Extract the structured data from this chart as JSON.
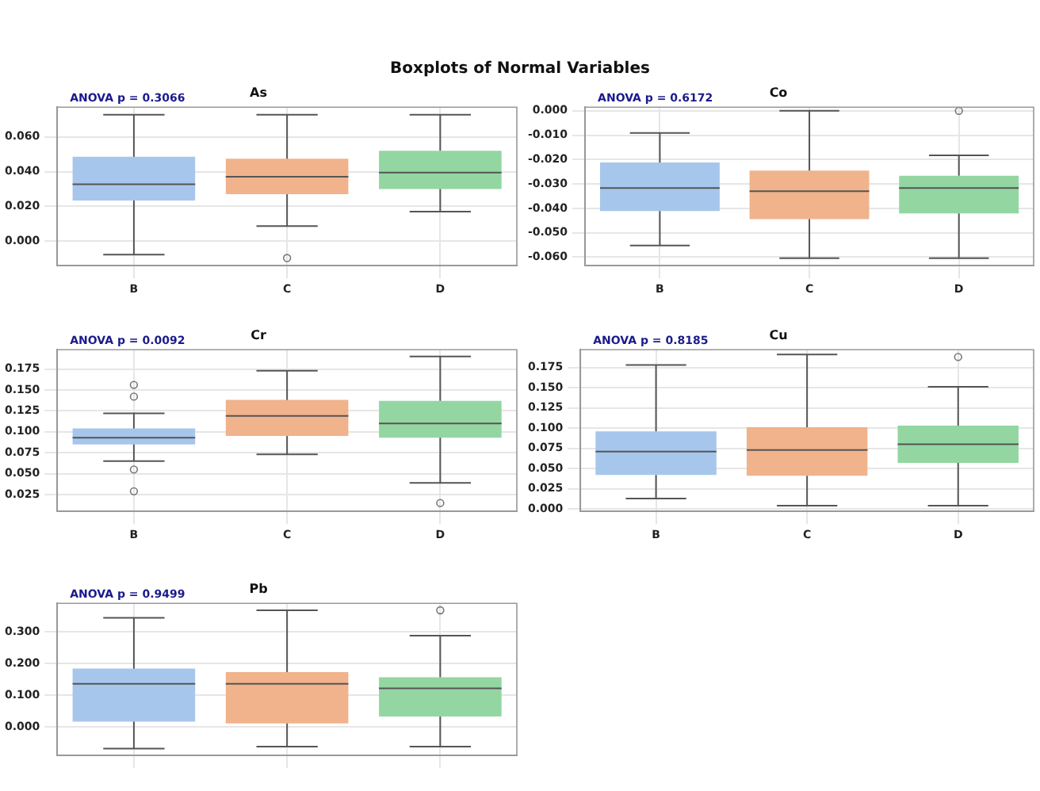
{
  "chart_data": [
    {
      "type": "other",
      "title": "Boxplots of Normal Variables"
    },
    {
      "type": "box",
      "title": "As",
      "annotations": [
        "ANOVA p = 0.3066"
      ],
      "categories": [
        "B",
        "C",
        "D"
      ],
      "colors": [
        "#a7c6ec",
        "#f0b38c",
        "#93d6a2"
      ],
      "ylim": [
        -0.014,
        0.077
      ],
      "yticks": [
        {
          "value": 0,
          "label": "0.000"
        },
        {
          "value": 0.02,
          "label": "0.020"
        },
        {
          "value": 0.04,
          "label": "0.040"
        },
        {
          "value": 0.06,
          "label": "0.060"
        }
      ],
      "grid": true,
      "boxes": [
        {
          "low": -0.0076,
          "q1": 0.0234,
          "median": 0.0327,
          "q3": 0.0485,
          "high": 0.0727
        },
        {
          "low": 0.0087,
          "q1": 0.027,
          "median": 0.037,
          "q3": 0.0474,
          "high": 0.0727,
          "outliers": [
            -0.0096
          ]
        },
        {
          "low": 0.017,
          "q1": 0.03,
          "median": 0.0394,
          "q3": 0.052,
          "high": 0.0727
        }
      ]
    },
    {
      "type": "box",
      "title": "Co",
      "annotations": [
        "ANOVA p = 0.6172"
      ],
      "categories": [
        "B",
        "C",
        "D"
      ],
      "colors": [
        "#a7c6ec",
        "#f0b38c",
        "#93d6a2"
      ],
      "ylim": [
        -0.0635,
        0.0015
      ],
      "yticks": [
        {
          "value": -0.06,
          "label": "-0.060"
        },
        {
          "value": -0.05,
          "label": "-0.050"
        },
        {
          "value": -0.04,
          "label": "-0.040"
        },
        {
          "value": -0.03,
          "label": "-0.030"
        },
        {
          "value": -0.02,
          "label": "-0.020"
        },
        {
          "value": -0.01,
          "label": "-0.010"
        },
        {
          "value": 0,
          "label": "0.000"
        }
      ],
      "grid": true,
      "boxes": [
        {
          "low": -0.0552,
          "q1": -0.0411,
          "median": -0.0317,
          "q3": -0.0212,
          "high": -0.0091
        },
        {
          "low": -0.0604,
          "q1": -0.0444,
          "median": -0.033,
          "q3": -0.0245,
          "high": 0.0
        },
        {
          "low": -0.0604,
          "q1": -0.0421,
          "median": -0.0317,
          "q3": -0.0266,
          "high": -0.0183,
          "outliers": [
            0.0
          ]
        }
      ]
    },
    {
      "type": "box",
      "title": "Cr",
      "annotations": [
        "ANOVA p = 0.0092"
      ],
      "categories": [
        "B",
        "C",
        "D"
      ],
      "colors": [
        "#a7c6ec",
        "#f0b38c",
        "#93d6a2"
      ],
      "ylim": [
        0.005,
        0.198
      ],
      "yticks": [
        {
          "value": 0.025,
          "label": "0.025"
        },
        {
          "value": 0.05,
          "label": "0.050"
        },
        {
          "value": 0.075,
          "label": "0.075"
        },
        {
          "value": 0.1,
          "label": "0.100"
        },
        {
          "value": 0.125,
          "label": "0.125"
        },
        {
          "value": 0.15,
          "label": "0.150"
        },
        {
          "value": 0.175,
          "label": "0.175"
        }
      ],
      "grid": true,
      "boxes": [
        {
          "low": 0.065,
          "q1": 0.085,
          "median": 0.093,
          "q3": 0.104,
          "high": 0.122,
          "outliers": [
            0.156,
            0.142,
            0.055,
            0.029
          ]
        },
        {
          "low": 0.073,
          "q1": 0.095,
          "median": 0.119,
          "q3": 0.138,
          "high": 0.173
        },
        {
          "low": 0.039,
          "q1": 0.093,
          "median": 0.11,
          "q3": 0.137,
          "high": 0.19,
          "outliers": [
            0.015
          ]
        }
      ]
    },
    {
      "type": "box",
      "title": "Cu",
      "annotations": [
        "ANOVA p = 0.8185"
      ],
      "categories": [
        "B",
        "C",
        "D"
      ],
      "colors": [
        "#a7c6ec",
        "#f0b38c",
        "#93d6a2"
      ],
      "ylim": [
        -0.003,
        0.197
      ],
      "yticks": [
        {
          "value": 0,
          "label": "0.000"
        },
        {
          "value": 0.025,
          "label": "0.025"
        },
        {
          "value": 0.05,
          "label": "0.050"
        },
        {
          "value": 0.075,
          "label": "0.075"
        },
        {
          "value": 0.1,
          "label": "0.100"
        },
        {
          "value": 0.125,
          "label": "0.125"
        },
        {
          "value": 0.15,
          "label": "0.150"
        },
        {
          "value": 0.175,
          "label": "0.175"
        }
      ],
      "grid": true,
      "boxes": [
        {
          "low": 0.013,
          "q1": 0.042,
          "median": 0.071,
          "q3": 0.096,
          "high": 0.178
        },
        {
          "low": 0.004,
          "q1": 0.041,
          "median": 0.073,
          "q3": 0.101,
          "high": 0.191
        },
        {
          "low": 0.004,
          "q1": 0.057,
          "median": 0.08,
          "q3": 0.103,
          "high": 0.151,
          "outliers": [
            0.188
          ]
        }
      ]
    },
    {
      "type": "box",
      "title": "Pb",
      "annotations": [
        "ANOVA p = 0.9499"
      ],
      "categories": [
        null,
        null,
        null
      ],
      "colors": [
        "#a7c6ec",
        "#f0b38c",
        "#93d6a2"
      ],
      "ylim": [
        -0.09,
        0.39
      ],
      "yticks": [
        {
          "value": 0,
          "label": "0.000"
        },
        {
          "value": 0.1,
          "label": "0.100"
        },
        {
          "value": 0.2,
          "label": "0.200"
        },
        {
          "value": 0.3,
          "label": "0.300"
        }
      ],
      "grid": true,
      "boxes": [
        {
          "low": -0.068,
          "q1": 0.017,
          "median": 0.136,
          "q3": 0.184,
          "high": 0.344
        },
        {
          "low": -0.062,
          "q1": 0.011,
          "median": 0.136,
          "q3": 0.173,
          "high": 0.368
        },
        {
          "low": -0.062,
          "q1": 0.033,
          "median": 0.122,
          "q3": 0.157,
          "high": 0.288,
          "outliers": [
            0.368
          ]
        }
      ]
    }
  ]
}
